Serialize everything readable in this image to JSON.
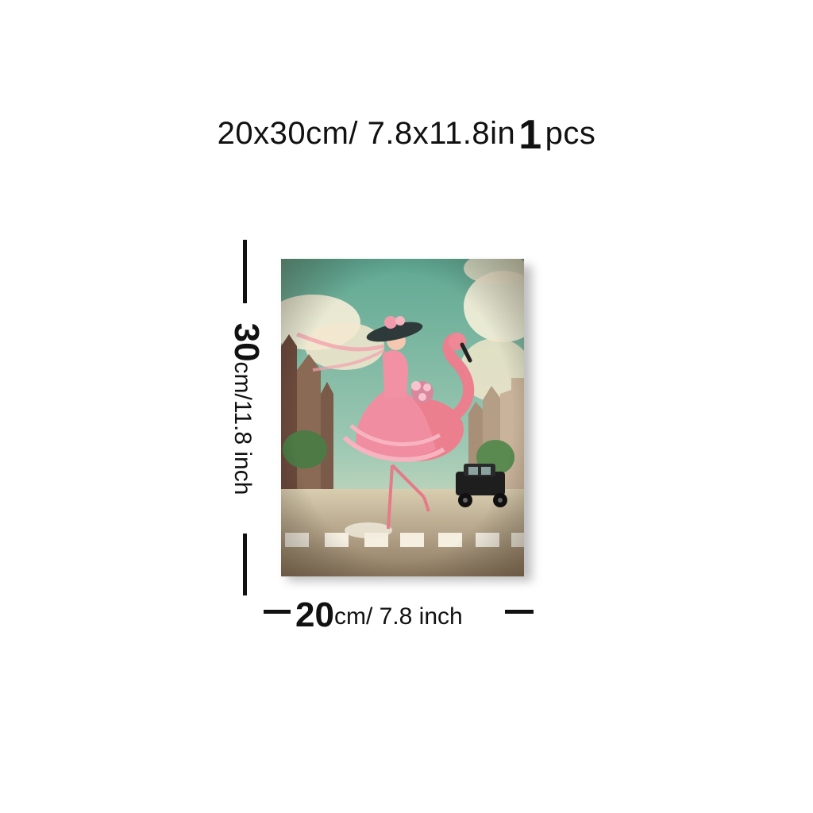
{
  "title": {
    "size_text": "20x30cm/ 7.8x11.8in",
    "quantity_number": "1",
    "quantity_unit": "pcs"
  },
  "height_label": {
    "number": "30",
    "unit_text": "cm/11.8 inch"
  },
  "width_label": {
    "number": "20",
    "unit_text": "cm/ 7.8 inch"
  },
  "colors": {
    "sky": "#6fb3a0",
    "flamingo": "#ec7f8d",
    "dress": "#f08da0",
    "road": "#c8b79a",
    "car": "#1e1e1e"
  }
}
